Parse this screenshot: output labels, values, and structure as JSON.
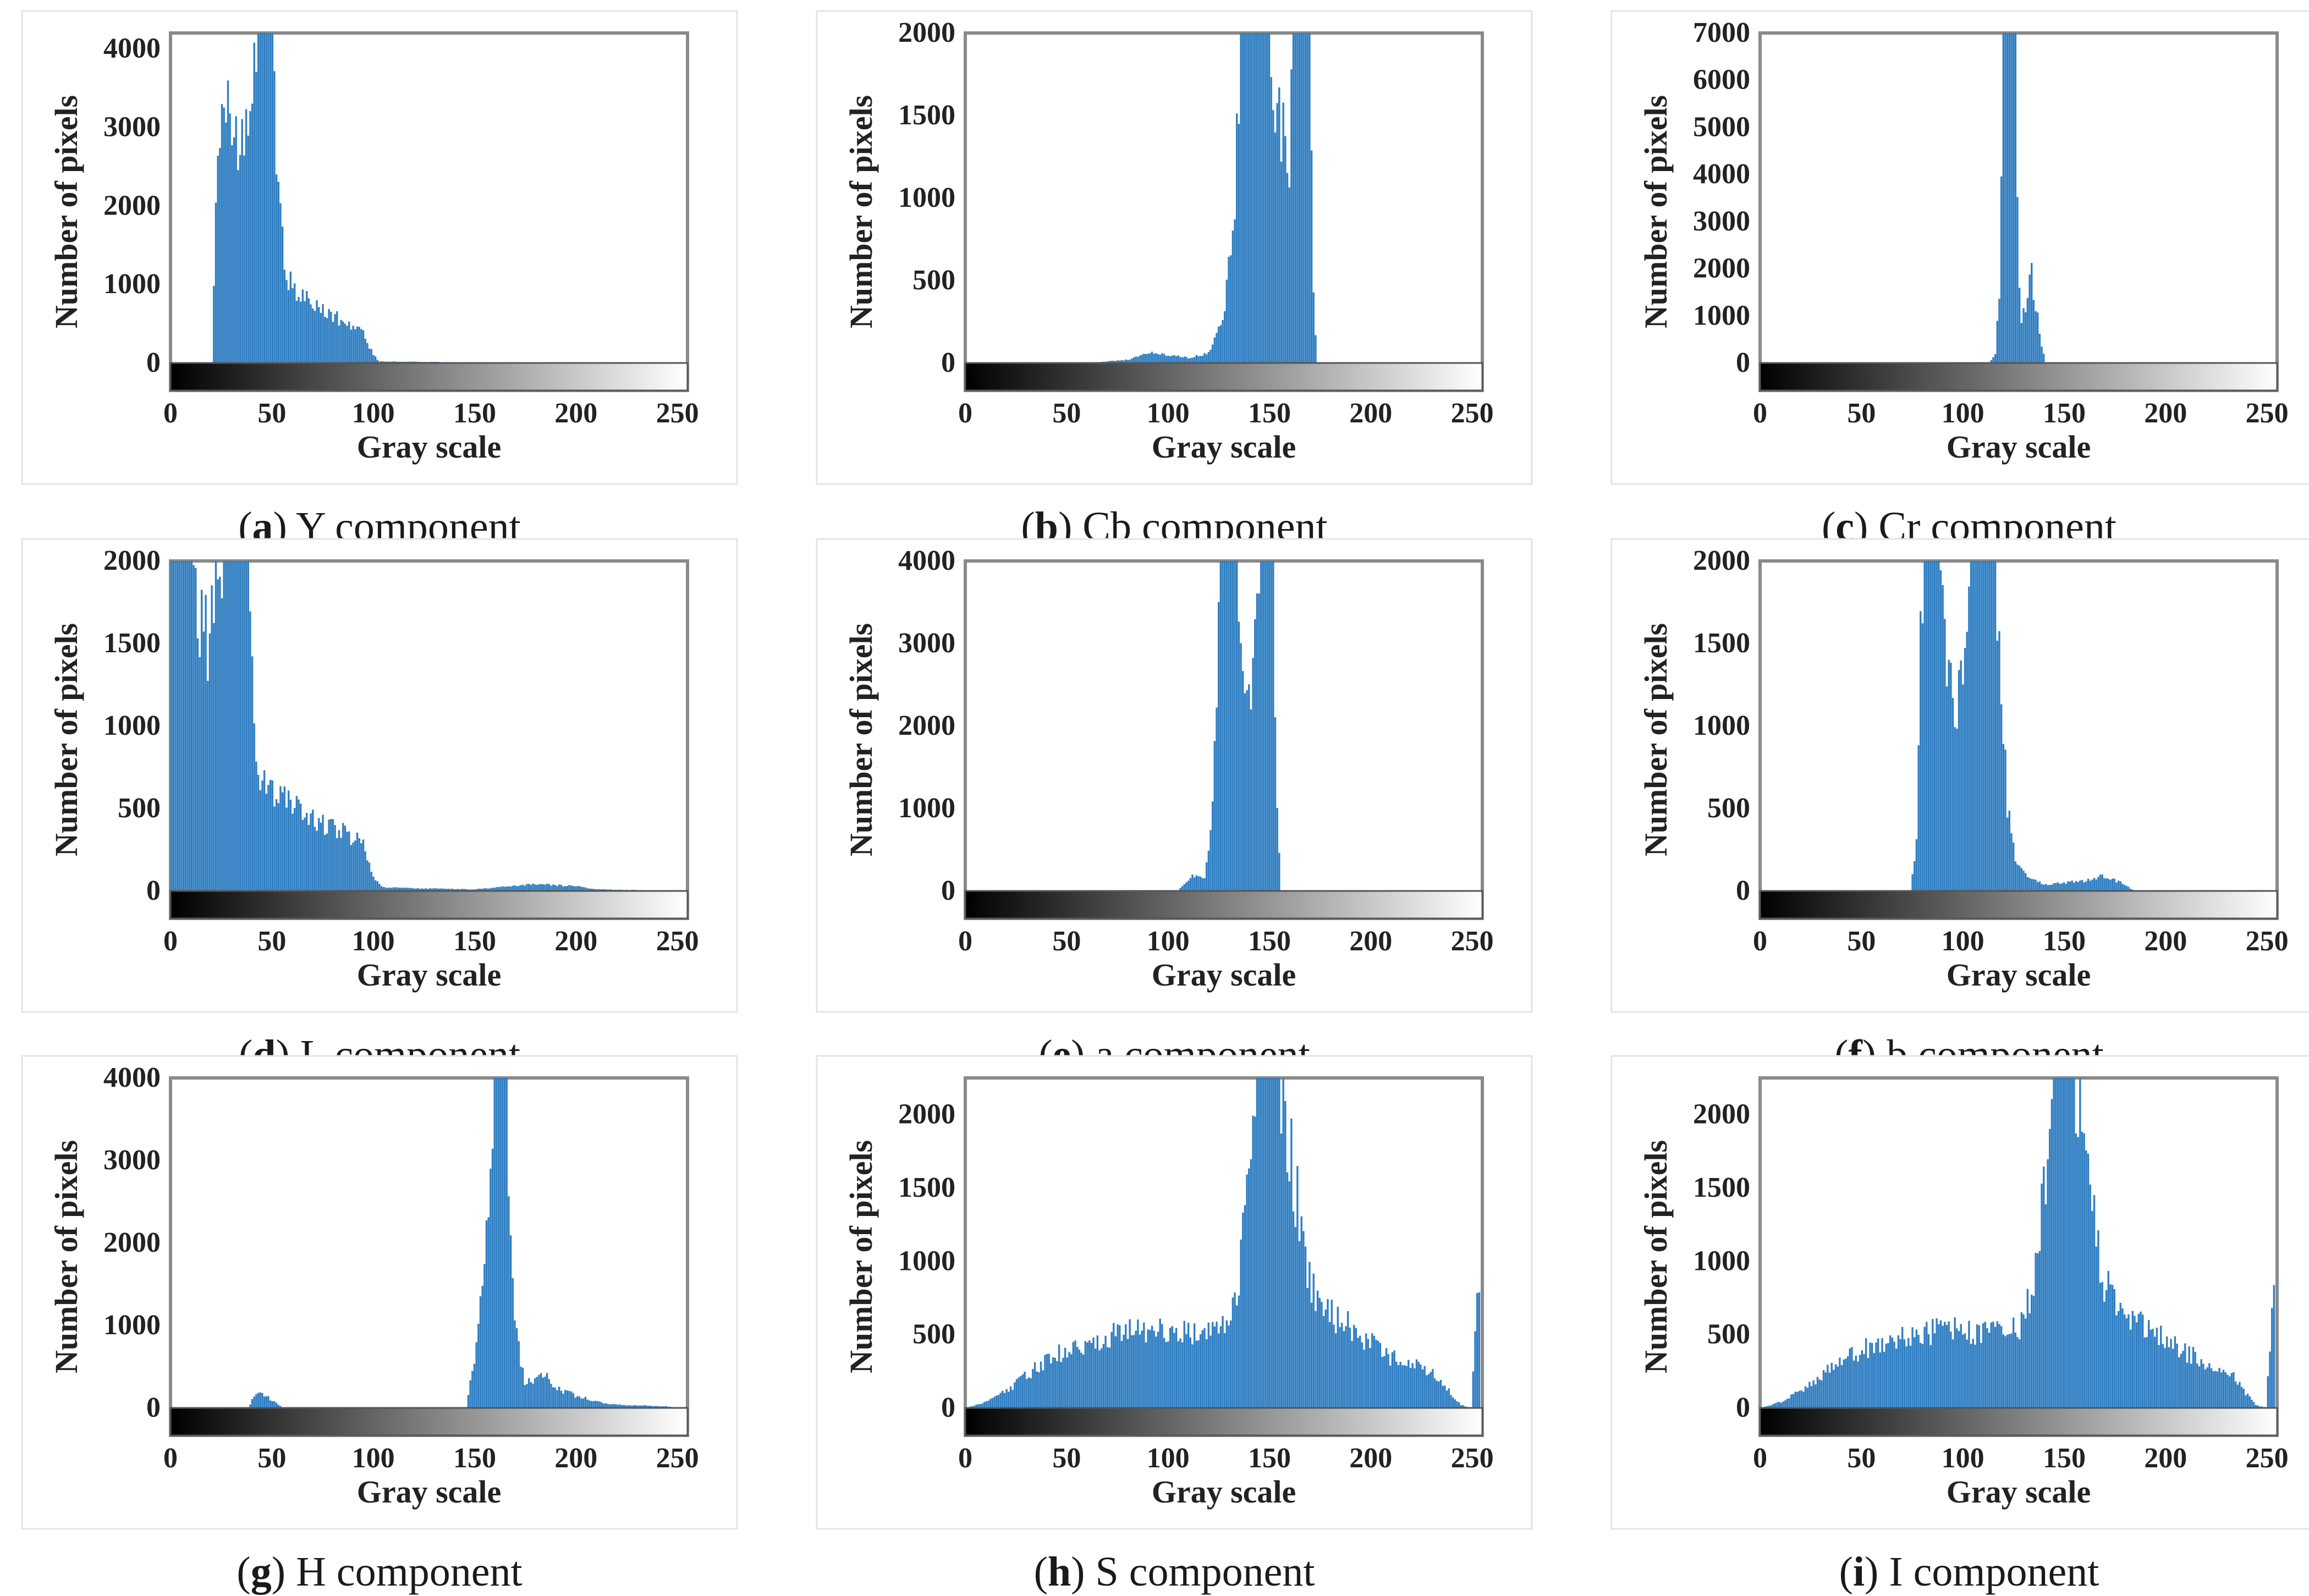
{
  "figure": {
    "bar_color": "#2f7ec2",
    "bar_edge_color": "#1f5f9e"
  },
  "chart_data": [
    {
      "id": "a",
      "type": "bar",
      "caption_letter": "a",
      "caption_text": "Y component",
      "xlabel": "Gray scale",
      "ylabel": "Number of pixels",
      "xlim": [
        0,
        255
      ],
      "ylim": [
        0,
        4200
      ],
      "xticks": [
        "0",
        "50",
        "100",
        "150",
        "200",
        "250"
      ],
      "yticks": [
        {
          "v": 0,
          "t": "0"
        },
        {
          "v": 1000,
          "t": "1000"
        },
        {
          "v": 2000,
          "t": "2000"
        },
        {
          "v": 3000,
          "t": "3000"
        },
        {
          "v": 4000,
          "t": "4000"
        }
      ],
      "profile": [
        [
          20,
          0
        ],
        [
          22,
          2000
        ],
        [
          25,
          3000
        ],
        [
          28,
          3300
        ],
        [
          31,
          2900
        ],
        [
          35,
          2700
        ],
        [
          39,
          3100
        ],
        [
          43,
          4200
        ],
        [
          50,
          4200
        ],
        [
          53,
          2200
        ],
        [
          56,
          1300
        ],
        [
          60,
          900
        ],
        [
          70,
          750
        ],
        [
          80,
          600
        ],
        [
          90,
          450
        ],
        [
          95,
          380
        ],
        [
          100,
          100
        ],
        [
          103,
          20
        ],
        [
          140,
          10
        ],
        [
          255,
          0
        ]
      ]
    },
    {
      "id": "b",
      "type": "bar",
      "caption_letter": "b",
      "caption_text": "Cb component",
      "xlabel": "Gray scale",
      "ylabel": "Number of pixels",
      "xlim": [
        0,
        255
      ],
      "ylim": [
        0,
        2000
      ],
      "xticks": [
        "0",
        "50",
        "100",
        "150",
        "200",
        "250"
      ],
      "yticks": [
        {
          "v": 0,
          "t": "0"
        },
        {
          "v": 500,
          "t": "500"
        },
        {
          "v": 1000,
          "t": "1000"
        },
        {
          "v": 1500,
          "t": "1500"
        },
        {
          "v": 2000,
          "t": "2000"
        }
      ],
      "profile": [
        [
          60,
          0
        ],
        [
          80,
          20
        ],
        [
          90,
          60
        ],
        [
          100,
          50
        ],
        [
          110,
          30
        ],
        [
          120,
          60
        ],
        [
          128,
          300
        ],
        [
          133,
          1000
        ],
        [
          136,
          2000
        ],
        [
          150,
          2000
        ],
        [
          154,
          1600
        ],
        [
          158,
          1300
        ],
        [
          160,
          1100
        ],
        [
          162,
          2000
        ],
        [
          170,
          2000
        ],
        [
          172,
          400
        ],
        [
          174,
          0
        ],
        [
          255,
          0
        ]
      ]
    },
    {
      "id": "c",
      "type": "bar",
      "caption_letter": "c",
      "caption_text": "Cr component",
      "xlabel": "Gray scale",
      "ylabel": "Number of pixels",
      "xlim": [
        0,
        255
      ],
      "ylim": [
        0,
        7000
      ],
      "xticks": [
        "0",
        "50",
        "100",
        "150",
        "200",
        "250"
      ],
      "yticks": [
        {
          "v": 0,
          "t": "0"
        },
        {
          "v": 1000,
          "t": "1000"
        },
        {
          "v": 2000,
          "t": "2000"
        },
        {
          "v": 3000,
          "t": "3000"
        },
        {
          "v": 4000,
          "t": "4000"
        },
        {
          "v": 5000,
          "t": "5000"
        },
        {
          "v": 6000,
          "t": "6000"
        },
        {
          "v": 7000,
          "t": "7000"
        }
      ],
      "profile": [
        [
          113,
          0
        ],
        [
          116,
          200
        ],
        [
          118,
          1500
        ],
        [
          120,
          7000
        ],
        [
          126,
          7000
        ],
        [
          127,
          3000
        ],
        [
          129,
          800
        ],
        [
          131,
          1200
        ],
        [
          133,
          2100
        ],
        [
          136,
          1200
        ],
        [
          139,
          400
        ],
        [
          141,
          0
        ],
        [
          255,
          0
        ]
      ]
    },
    {
      "id": "d",
      "type": "bar",
      "caption_letter": "d",
      "caption_text": "L component",
      "xlabel": "Gray scale",
      "ylabel": "Number of pixels",
      "xlim": [
        0,
        255
      ],
      "ylim": [
        0,
        2000
      ],
      "xticks": [
        "0",
        "50",
        "100",
        "150",
        "200",
        "250"
      ],
      "yticks": [
        {
          "v": 0,
          "t": "0"
        },
        {
          "v": 500,
          "t": "500"
        },
        {
          "v": 1000,
          "t": "1000"
        },
        {
          "v": 1500,
          "t": "1500"
        },
        {
          "v": 2000,
          "t": "2000"
        }
      ],
      "profile": [
        [
          -4,
          1000
        ],
        [
          0,
          2000
        ],
        [
          10,
          2000
        ],
        [
          14,
          1700
        ],
        [
          18,
          1550
        ],
        [
          22,
          1750
        ],
        [
          26,
          2000
        ],
        [
          38,
          2000
        ],
        [
          42,
          700
        ],
        [
          48,
          600
        ],
        [
          60,
          550
        ],
        [
          70,
          450
        ],
        [
          80,
          380
        ],
        [
          90,
          320
        ],
        [
          95,
          280
        ],
        [
          100,
          80
        ],
        [
          105,
          20
        ],
        [
          150,
          10
        ],
        [
          180,
          40
        ],
        [
          200,
          30
        ],
        [
          210,
          10
        ],
        [
          255,
          0
        ]
      ]
    },
    {
      "id": "e",
      "type": "bar",
      "caption_letter": "e",
      "caption_text": "a component",
      "xlabel": "Gray scale",
      "ylabel": "Number of pixels",
      "xlim": [
        0,
        255
      ],
      "ylim": [
        0,
        4000
      ],
      "xticks": [
        "0",
        "50",
        "100",
        "150",
        "200",
        "250"
      ],
      "yticks": [
        {
          "v": 0,
          "t": "0"
        },
        {
          "v": 1000,
          "t": "1000"
        },
        {
          "v": 2000,
          "t": "2000"
        },
        {
          "v": 3000,
          "t": "3000"
        },
        {
          "v": 4000,
          "t": "4000"
        }
      ],
      "profile": [
        [
          105,
          0
        ],
        [
          110,
          150
        ],
        [
          115,
          200
        ],
        [
          118,
          150
        ],
        [
          121,
          800
        ],
        [
          124,
          2200
        ],
        [
          126,
          4000
        ],
        [
          134,
          4000
        ],
        [
          138,
          2800
        ],
        [
          141,
          2300
        ],
        [
          144,
          3200
        ],
        [
          146,
          4000
        ],
        [
          152,
          4000
        ],
        [
          154,
          1000
        ],
        [
          156,
          0
        ],
        [
          255,
          0
        ]
      ]
    },
    {
      "id": "f",
      "type": "bar",
      "caption_letter": "f",
      "caption_text": "b component",
      "xlabel": "Gray scale",
      "ylabel": "Number of pixels",
      "xlim": [
        0,
        255
      ],
      "ylim": [
        0,
        2000
      ],
      "xticks": [
        "0",
        "50",
        "100",
        "150",
        "200",
        "250"
      ],
      "yticks": [
        {
          "v": 0,
          "t": "0"
        },
        {
          "v": 500,
          "t": "500"
        },
        {
          "v": 1000,
          "t": "1000"
        },
        {
          "v": 1500,
          "t": "1500"
        },
        {
          "v": 2000,
          "t": "2000"
        }
      ],
      "profile": [
        [
          74,
          0
        ],
        [
          77,
          300
        ],
        [
          79,
          1500
        ],
        [
          81,
          2000
        ],
        [
          88,
          2000
        ],
        [
          92,
          1300
        ],
        [
          96,
          1100
        ],
        [
          100,
          1300
        ],
        [
          104,
          2000
        ],
        [
          115,
          2000
        ],
        [
          118,
          1500
        ],
        [
          122,
          500
        ],
        [
          126,
          200
        ],
        [
          132,
          80
        ],
        [
          140,
          40
        ],
        [
          160,
          60
        ],
        [
          170,
          90
        ],
        [
          178,
          50
        ],
        [
          185,
          0
        ],
        [
          255,
          0
        ]
      ]
    },
    {
      "id": "g",
      "type": "bar",
      "caption_letter": "g",
      "caption_text": "H component",
      "xlabel": "Gray scale",
      "ylabel": "Number of pixels",
      "xlim": [
        0,
        255
      ],
      "ylim": [
        0,
        4000
      ],
      "xticks": [
        "0",
        "50",
        "100",
        "150",
        "200",
        "250"
      ],
      "yticks": [
        {
          "v": 0,
          "t": "0"
        },
        {
          "v": 1000,
          "t": "1000"
        },
        {
          "v": 2000,
          "t": "2000"
        },
        {
          "v": 3000,
          "t": "3000"
        },
        {
          "v": 4000,
          "t": "4000"
        }
      ],
      "profile": [
        [
          38,
          0
        ],
        [
          42,
          200
        ],
        [
          46,
          150
        ],
        [
          52,
          60
        ],
        [
          55,
          0
        ],
        [
          146,
          0
        ],
        [
          150,
          600
        ],
        [
          155,
          1800
        ],
        [
          158,
          3000
        ],
        [
          160,
          4000
        ],
        [
          166,
          4000
        ],
        [
          168,
          1800
        ],
        [
          171,
          900
        ],
        [
          175,
          300
        ],
        [
          180,
          350
        ],
        [
          185,
          400
        ],
        [
          190,
          250
        ],
        [
          200,
          150
        ],
        [
          210,
          80
        ],
        [
          220,
          40
        ],
        [
          245,
          20
        ],
        [
          250,
          0
        ],
        [
          255,
          0
        ]
      ]
    },
    {
      "id": "h",
      "type": "bar",
      "caption_letter": "h",
      "caption_text": "S component",
      "xlabel": "Gray scale",
      "ylabel": "Number of pixels",
      "xlim": [
        0,
        255
      ],
      "ylim": [
        0,
        2250
      ],
      "xticks": [
        "0",
        "50",
        "100",
        "150",
        "200",
        "250"
      ],
      "yticks": [
        {
          "v": 0,
          "t": "0"
        },
        {
          "v": 500,
          "t": "500"
        },
        {
          "v": 1000,
          "t": "1000"
        },
        {
          "v": 1500,
          "t": "1500"
        },
        {
          "v": 2000,
          "t": "2000"
        }
      ],
      "profile": [
        [
          0,
          0
        ],
        [
          10,
          40
        ],
        [
          20,
          120
        ],
        [
          30,
          220
        ],
        [
          40,
          330
        ],
        [
          50,
          400
        ],
        [
          60,
          430
        ],
        [
          70,
          480
        ],
        [
          80,
          520
        ],
        [
          90,
          540
        ],
        [
          100,
          530
        ],
        [
          110,
          530
        ],
        [
          120,
          520
        ],
        [
          130,
          560
        ],
        [
          135,
          900
        ],
        [
          140,
          1500
        ],
        [
          145,
          2250
        ],
        [
          155,
          2250
        ],
        [
          160,
          1800
        ],
        [
          165,
          1300
        ],
        [
          170,
          850
        ],
        [
          180,
          650
        ],
        [
          190,
          550
        ],
        [
          200,
          450
        ],
        [
          210,
          350
        ],
        [
          220,
          300
        ],
        [
          230,
          250
        ],
        [
          240,
          100
        ],
        [
          245,
          20
        ],
        [
          250,
          0
        ],
        [
          254,
          900
        ],
        [
          255,
          0
        ]
      ]
    },
    {
      "id": "i",
      "type": "bar",
      "caption_letter": "i",
      "caption_text": "I component",
      "xlabel": "Gray scale",
      "ylabel": "Number of pixels",
      "xlim": [
        0,
        255
      ],
      "ylim": [
        0,
        2250
      ],
      "xticks": [
        "0",
        "50",
        "100",
        "150",
        "200",
        "250"
      ],
      "yticks": [
        {
          "v": 0,
          "t": "0"
        },
        {
          "v": 500,
          "t": "500"
        },
        {
          "v": 1000,
          "t": "1000"
        },
        {
          "v": 1500,
          "t": "1500"
        },
        {
          "v": 2000,
          "t": "2000"
        }
      ],
      "profile": [
        [
          0,
          0
        ],
        [
          10,
          40
        ],
        [
          20,
          120
        ],
        [
          30,
          220
        ],
        [
          40,
          330
        ],
        [
          50,
          400
        ],
        [
          60,
          420
        ],
        [
          70,
          470
        ],
        [
          80,
          510
        ],
        [
          90,
          530
        ],
        [
          100,
          520
        ],
        [
          110,
          520
        ],
        [
          120,
          510
        ],
        [
          130,
          560
        ],
        [
          135,
          900
        ],
        [
          140,
          1500
        ],
        [
          145,
          2250
        ],
        [
          155,
          2250
        ],
        [
          160,
          1800
        ],
        [
          165,
          1300
        ],
        [
          170,
          850
        ],
        [
          180,
          650
        ],
        [
          190,
          550
        ],
        [
          200,
          470
        ],
        [
          210,
          380
        ],
        [
          220,
          320
        ],
        [
          230,
          280
        ],
        [
          240,
          100
        ],
        [
          245,
          20
        ],
        [
          250,
          0
        ],
        [
          254,
          900
        ],
        [
          255,
          0
        ]
      ]
    }
  ]
}
